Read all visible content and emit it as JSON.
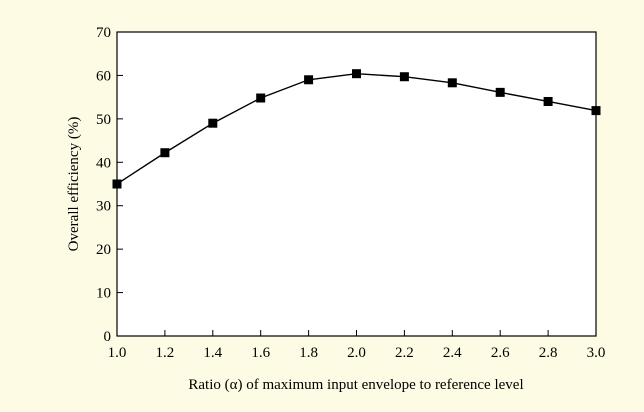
{
  "chart_data": {
    "type": "line",
    "title": "",
    "xlabel": "Ratio (α) of maximum input envelope to reference level",
    "ylabel": "Overall efficiency (%)",
    "xlim": [
      1.0,
      3.0
    ],
    "ylim": [
      0,
      70
    ],
    "x_ticks": [
      "1.0",
      "1.2",
      "1.4",
      "1.6",
      "1.8",
      "2.0",
      "2.2",
      "2.4",
      "2.6",
      "2.8",
      "3.0"
    ],
    "y_ticks": [
      "0",
      "10",
      "20",
      "30",
      "40",
      "50",
      "60",
      "70"
    ],
    "grid": false,
    "legend": "none",
    "marker": "square",
    "colors": {
      "background": "#fdfbe4",
      "plot_area": "#ffffff",
      "series": "#000000"
    },
    "series": [
      {
        "x": [
          1.0,
          1.2,
          1.4,
          1.6,
          1.8,
          2.0,
          2.2,
          2.4,
          2.6,
          2.8,
          3.0
        ],
        "values": [
          35.0,
          42.2,
          49.0,
          54.8,
          59.0,
          60.4,
          59.7,
          58.3,
          56.1,
          54.0,
          51.9
        ]
      }
    ]
  }
}
